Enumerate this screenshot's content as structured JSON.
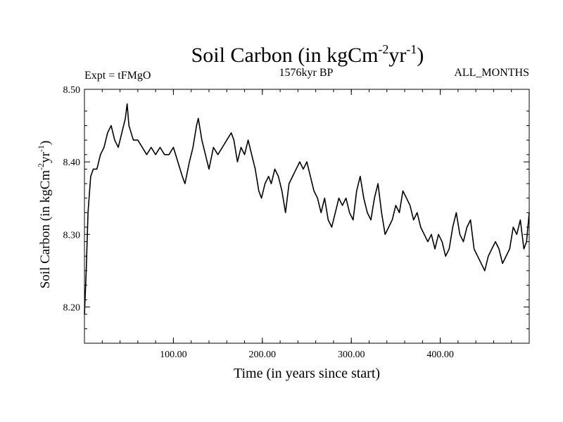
{
  "chart_data": {
    "type": "line",
    "title": {
      "main": "Soil Carbon (in kgCm",
      "sup1": "-2",
      "mid": "yr",
      "sup2": "-1",
      "end": ")"
    },
    "subtitle_left": "Expt = tFMgO",
    "subtitle_center": "1576kyr BP",
    "subtitle_right": "ALL_MONTHS",
    "xlabel": "Time (in years since start)",
    "ylabel": {
      "main": "Soil Carbon (in kgCm",
      "sup1": "-2",
      "mid": "yr",
      "sup2": "-1",
      "end": ")"
    },
    "xlim": [
      0,
      500
    ],
    "ylim": [
      8.15,
      8.5
    ],
    "x_ticks": [
      {
        "value": 100,
        "label": "100.00"
      },
      {
        "value": 200,
        "label": "200.00"
      },
      {
        "value": 300,
        "label": "300.00"
      },
      {
        "value": 400,
        "label": "400.00"
      }
    ],
    "y_ticks": [
      {
        "value": 8.2,
        "label": "8.20"
      },
      {
        "value": 8.3,
        "label": "8.30"
      },
      {
        "value": 8.4,
        "label": "8.40"
      },
      {
        "value": 8.5,
        "label": "8.50"
      }
    ],
    "x_minor_step": 20,
    "y_minor_step": 0.02,
    "line_color": "#000000",
    "series": [
      {
        "name": "Soil Carbon",
        "x": [
          0,
          2,
          4,
          7,
          10,
          14,
          18,
          22,
          26,
          30,
          34,
          38,
          42,
          46,
          48,
          50,
          55,
          60,
          65,
          70,
          75,
          80,
          85,
          90,
          95,
          100,
          105,
          110,
          113,
          118,
          122,
          126,
          128,
          132,
          136,
          140,
          145,
          150,
          155,
          160,
          165,
          168,
          172,
          176,
          180,
          184,
          188,
          192,
          196,
          199,
          203,
          207,
          210,
          214,
          218,
          222,
          226,
          230,
          234,
          238,
          242,
          246,
          250,
          254,
          258,
          262,
          266,
          270,
          274,
          278,
          282,
          286,
          290,
          294,
          298,
          302,
          306,
          310,
          314,
          318,
          322,
          326,
          330,
          334,
          338,
          342,
          346,
          350,
          354,
          358,
          362,
          366,
          370,
          374,
          378,
          382,
          386,
          390,
          394,
          398,
          402,
          406,
          410,
          414,
          418,
          422,
          426,
          430,
          434,
          438,
          442,
          446,
          450,
          454,
          458,
          462,
          466,
          470,
          474,
          478,
          482,
          486,
          490,
          494,
          497,
          500
        ],
        "y": [
          8.19,
          8.25,
          8.33,
          8.38,
          8.39,
          8.39,
          8.41,
          8.42,
          8.44,
          8.45,
          8.43,
          8.42,
          8.44,
          8.46,
          8.48,
          8.45,
          8.43,
          8.43,
          8.42,
          8.41,
          8.42,
          8.41,
          8.42,
          8.41,
          8.41,
          8.42,
          8.4,
          8.38,
          8.37,
          8.4,
          8.42,
          8.45,
          8.46,
          8.43,
          8.41,
          8.39,
          8.42,
          8.41,
          8.42,
          8.43,
          8.44,
          8.43,
          8.4,
          8.42,
          8.41,
          8.43,
          8.41,
          8.39,
          8.36,
          8.35,
          8.37,
          8.38,
          8.37,
          8.39,
          8.38,
          8.36,
          8.33,
          8.37,
          8.38,
          8.39,
          8.4,
          8.39,
          8.4,
          8.38,
          8.36,
          8.35,
          8.33,
          8.35,
          8.32,
          8.31,
          8.33,
          8.35,
          8.34,
          8.35,
          8.33,
          8.32,
          8.36,
          8.38,
          8.35,
          8.33,
          8.32,
          8.35,
          8.37,
          8.33,
          8.3,
          8.31,
          8.32,
          8.34,
          8.33,
          8.36,
          8.35,
          8.34,
          8.32,
          8.33,
          8.31,
          8.3,
          8.29,
          8.3,
          8.28,
          8.3,
          8.29,
          8.27,
          8.28,
          8.31,
          8.33,
          8.3,
          8.29,
          8.31,
          8.32,
          8.28,
          8.27,
          8.26,
          8.25,
          8.27,
          8.28,
          8.29,
          8.28,
          8.26,
          8.27,
          8.28,
          8.31,
          8.3,
          8.32,
          8.28,
          8.29,
          8.33
        ]
      }
    ]
  }
}
